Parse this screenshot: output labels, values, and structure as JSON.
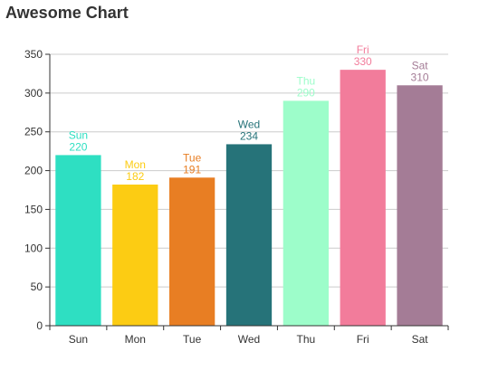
{
  "chart_data": {
    "type": "bar",
    "title": "Awesome Chart",
    "xlabel": "",
    "ylabel": "",
    "categories": [
      "Sun",
      "Mon",
      "Tue",
      "Wed",
      "Thu",
      "Fri",
      "Sat"
    ],
    "values": [
      220,
      182,
      191,
      234,
      290,
      330,
      310
    ],
    "colors": [
      "#2edfc2",
      "#fccc13",
      "#e87e23",
      "#267379",
      "#9dfdca",
      "#f27c9b",
      "#a47c96"
    ],
    "ylim": [
      0,
      350
    ],
    "yticks": [
      0,
      50,
      100,
      150,
      200,
      250,
      300,
      350
    ],
    "grid": true,
    "data_labels": "category and value above each bar"
  }
}
